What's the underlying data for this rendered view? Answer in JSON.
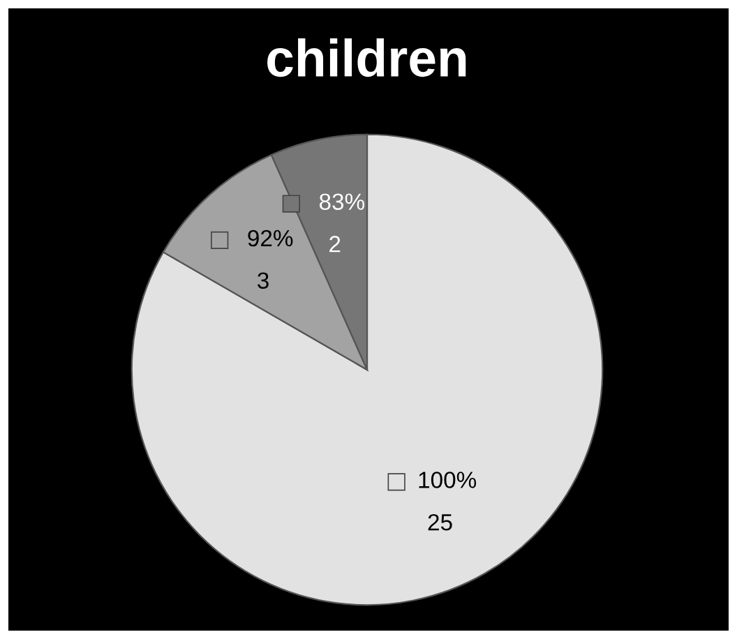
{
  "chart_data": {
    "type": "pie",
    "title": "children",
    "categories": [
      "100%",
      "92%",
      "83%"
    ],
    "values": [
      25,
      3,
      2
    ],
    "colors": [
      "#e2e2e2",
      "#a3a3a3",
      "#767676"
    ],
    "data_labels": true,
    "legend": "center"
  }
}
